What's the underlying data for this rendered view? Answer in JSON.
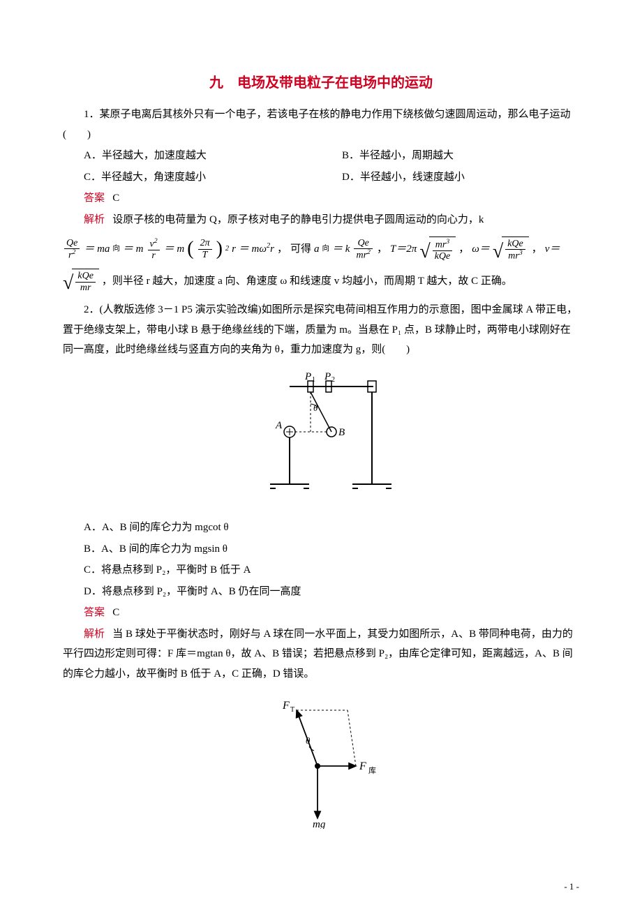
{
  "title": "九　电场及带电粒子在电场中的运动",
  "q1": {
    "stem": "1．某原子电离后其核外只有一个电子，若该电子在核的静电力作用下绕核做匀速圆周运动，那么电子运动(　　)",
    "optA": "A．半径越大，加速度越大",
    "optB": "B．半径越小，周期越大",
    "optC": "C．半径越大，角速度越小",
    "optD": "D．半径越小，线速度越小",
    "ansLabel": "答案",
    "ans": "C",
    "expLabel": "解析",
    "expIntro": "设原子核的电荷量为 Q，原子核对电子的静电引力提供电子圆周运动的向心力，k",
    "expTail": "，则半径 r 越大，加速度 a 向、角速度 ω 和线速度 v 均越小，而周期 T 越大，故 C 正确。"
  },
  "q2": {
    "stem": "2．(人教版选修 3－1 P5 演示实验改编)如图所示是探究电荷间相互作用力的示意图，图中金属球 A 带正电，置于绝缘支架上，带电小球 B 悬于绝缘丝线的下端，质量为 m。当悬在 P₁ 点，B 球静止时，两带电小球刚好在同一高度，此时绝缘丝线与竖直方向的夹角为 θ，重力加速度为 g，则(　　)",
    "optA": "A．A、B 间的库仑力为 mgcot θ",
    "optB": "B．A、B 间的库仑力为 mgsin θ",
    "optC": "C．将悬点移到 P₂，平衡时 B 低于 A",
    "optD": "D．将悬点移到 P₂，平衡时 A、B 仍在同一高度",
    "ansLabel": "答案",
    "ans": "C",
    "expLabel": "解析",
    "exp": "当 B 球处于平衡状态时，刚好与 A 球在同一水平面上，其受力如图所示，A、B 带同种电荷，由力的平行四边形定则可得：F 库＝mgtan θ，故 A、B 错误；若把悬点移到 P₂，由库仑定律可知，距离越远，A、B 间的库仑力越小，故平衡时 B 低于 A，C 正确，D 错误。"
  },
  "fig1": {
    "P1": "P₁",
    "P2": "P₂",
    "A": "A",
    "B": "B",
    "theta": "θ"
  },
  "fig2": {
    "FT": "F_T",
    "Fcoul": "F 库",
    "mg": "mg",
    "theta": "θ"
  },
  "pageNum": "- 1 -",
  "colors": {
    "accent": "#d00020",
    "text": "#000000",
    "bg": "#ffffff"
  }
}
